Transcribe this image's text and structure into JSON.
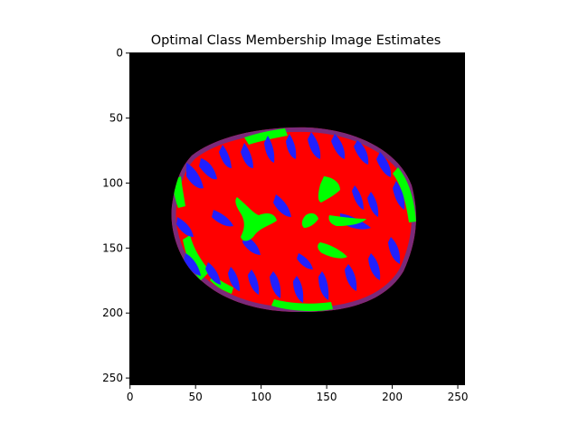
{
  "chart_data": {
    "type": "heatmap",
    "title": "Optimal Class Membership Image Estimates",
    "xlabel": "",
    "ylabel": "",
    "image_size": [
      256,
      256
    ],
    "xlim": [
      0,
      256
    ],
    "ylim": [
      256,
      0
    ],
    "x_ticks": [
      0,
      50,
      100,
      150,
      200,
      250
    ],
    "y_ticks": [
      0,
      50,
      100,
      150,
      200,
      250
    ],
    "grid": false,
    "legend": "none",
    "background_color": "#000000",
    "class_colors": {
      "white_matter": "#ff0000",
      "gray_matter": "#2020ff",
      "csf": "#00ff00"
    },
    "regions": {
      "brain_mask": {
        "center": [
          126,
          129
        ],
        "semi_axes": [
          93,
          70
        ],
        "rotation_deg": 0
      }
    }
  }
}
